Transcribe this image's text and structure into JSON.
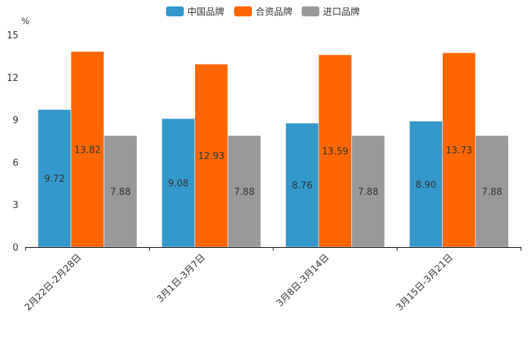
{
  "chart_data": {
    "type": "bar",
    "title": "",
    "xlabel": "",
    "ylabel": "%",
    "ylim": [
      0,
      15
    ],
    "yticks": [
      0,
      3,
      6,
      9,
      12,
      15
    ],
    "grid": false,
    "legend_position": "top-center",
    "categories": [
      "2月22日-2月28日",
      "3月1日-3月7日",
      "3月8日-3月14日",
      "3月15日-3月21日"
    ],
    "series": [
      {
        "name": "中国品牌",
        "color": "#3399cc",
        "values": [
          9.72,
          9.08,
          8.76,
          8.9
        ],
        "labels": [
          "9.72",
          "9.08",
          "8.76",
          "8.90"
        ]
      },
      {
        "name": "合资品牌",
        "color": "#ff6600",
        "values": [
          13.82,
          12.93,
          13.59,
          13.73
        ],
        "labels": [
          "13.82",
          "12.93",
          "13.59",
          "13.73"
        ]
      },
      {
        "name": "进口品牌",
        "color": "#999999",
        "values": [
          7.88,
          7.88,
          7.88,
          7.88
        ],
        "labels": [
          "7.88",
          "7.88",
          "7.88",
          "7.88"
        ]
      }
    ]
  }
}
